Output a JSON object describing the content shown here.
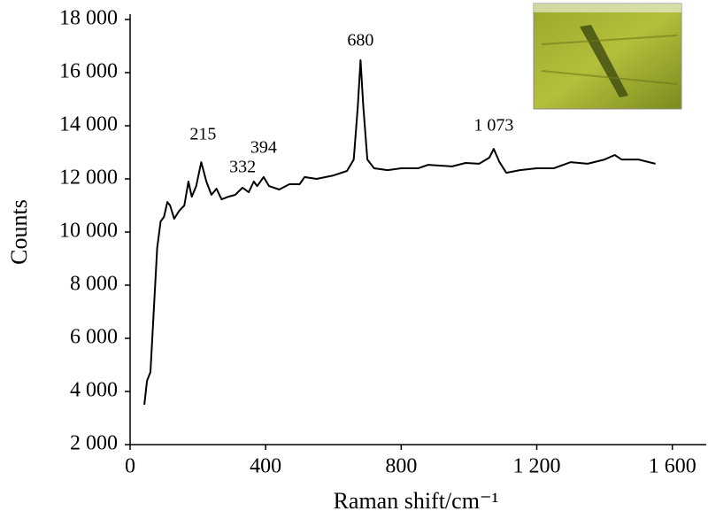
{
  "chart_data": {
    "type": "line",
    "xlabel": "Raman shift/cm⁻¹",
    "ylabel": "Counts",
    "xlim": [
      0,
      1700
    ],
    "ylim": [
      2000,
      18000
    ],
    "xticks": [
      0,
      400,
      {
        "value": 800,
        "label": "800"
      },
      {
        "value": 1200,
        "label": "1 200"
      },
      {
        "value": 1600,
        "label": "1 600"
      }
    ],
    "yticks": [
      {
        "value": 2000,
        "label": "2 000"
      },
      {
        "value": 4000,
        "label": "4 000"
      },
      {
        "value": 6000,
        "label": "6 000"
      },
      {
        "value": 8000,
        "label": "8 000"
      },
      {
        "value": 10000,
        "label": "10 000"
      },
      {
        "value": 12000,
        "label": "12 000"
      },
      {
        "value": 14000,
        "label": "14 000"
      },
      {
        "value": 16000,
        "label": "16 000"
      },
      {
        "value": 18000,
        "label": "18 000"
      }
    ],
    "series": [
      {
        "color": "#000000",
        "x": [
          42,
          50,
          60,
          70,
          80,
          90,
          100,
          110,
          118,
          130,
          145,
          160,
          172,
          182,
          195,
          210,
          225,
          240,
          255,
          270,
          290,
          310,
          332,
          350,
          365,
          375,
          394,
          410,
          440,
          470,
          500,
          515,
          550,
          600,
          640,
          660,
          672,
          680,
          688,
          700,
          720,
          760,
          800,
          850,
          880,
          950,
          990,
          1030,
          1060,
          1073,
          1090,
          1110,
          1150,
          1200,
          1250,
          1300,
          1350,
          1400,
          1430,
          1450,
          1500,
          1550
        ],
        "values": [
          3500,
          4400,
          4730,
          7070,
          9400,
          10400,
          10570,
          11130,
          11000,
          10500,
          10800,
          11000,
          11900,
          11330,
          11730,
          12630,
          11900,
          11400,
          11630,
          11230,
          11330,
          11400,
          11670,
          11500,
          11900,
          11730,
          12070,
          11730,
          11600,
          11800,
          11800,
          12070,
          12000,
          12130,
          12300,
          12730,
          14730,
          16470,
          14730,
          12730,
          12400,
          12330,
          12400,
          12400,
          12530,
          12470,
          12600,
          12570,
          12800,
          13130,
          12630,
          12230,
          12330,
          12400,
          12400,
          12630,
          12570,
          12730,
          12900,
          12730,
          12730,
          12570
        ]
      }
    ],
    "annotations": [
      {
        "text": "215",
        "x": 215,
        "y": 13630
      },
      {
        "text": "332",
        "x": 332,
        "y": 12400
      },
      {
        "text": "394",
        "x": 394,
        "y": 13130
      },
      {
        "text": "680",
        "x": 680,
        "y": 17170
      },
      {
        "text": "1 073",
        "x": 1073,
        "y": 13970
      }
    ]
  }
}
